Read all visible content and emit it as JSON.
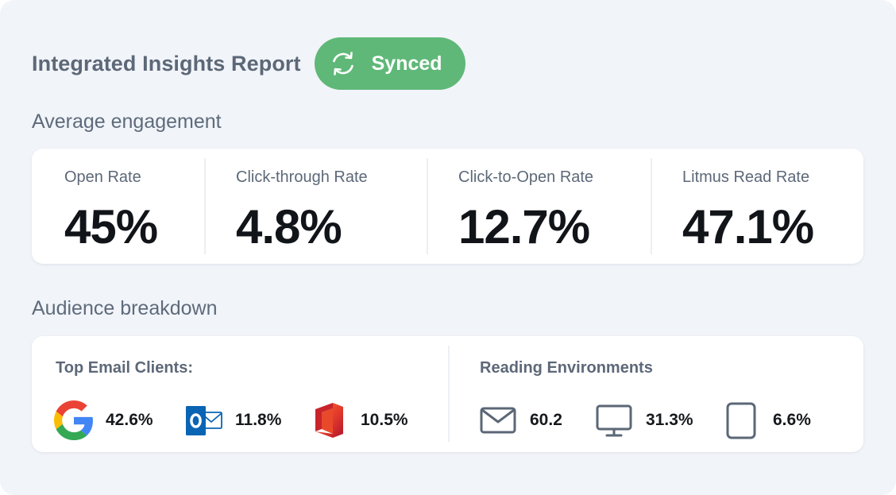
{
  "header": {
    "title": "Integrated Insights Report",
    "sync_status": "Synced",
    "sync_color": "#5fb878"
  },
  "engagement": {
    "title": "Average engagement",
    "metrics": [
      {
        "label": "Open Rate",
        "value": "45%"
      },
      {
        "label": "Click-through Rate",
        "value": "4.8%"
      },
      {
        "label": "Click-to-Open Rate",
        "value": "12.7%"
      },
      {
        "label": "Litmus Read Rate",
        "value": "47.1%"
      }
    ]
  },
  "audience": {
    "title": "Audience breakdown",
    "email_clients": {
      "title": "Top Email Clients:",
      "items": [
        {
          "icon": "google-icon",
          "value": "42.6%"
        },
        {
          "icon": "outlook-icon",
          "value": "11.8%"
        },
        {
          "icon": "office-icon",
          "value": "10.5%"
        }
      ]
    },
    "environments": {
      "title": "Reading Environments",
      "items": [
        {
          "icon": "envelope-icon",
          "value": "60.2"
        },
        {
          "icon": "desktop-monitor-icon",
          "value": "31.3%"
        },
        {
          "icon": "tablet-icon",
          "value": "6.6%"
        }
      ]
    }
  }
}
